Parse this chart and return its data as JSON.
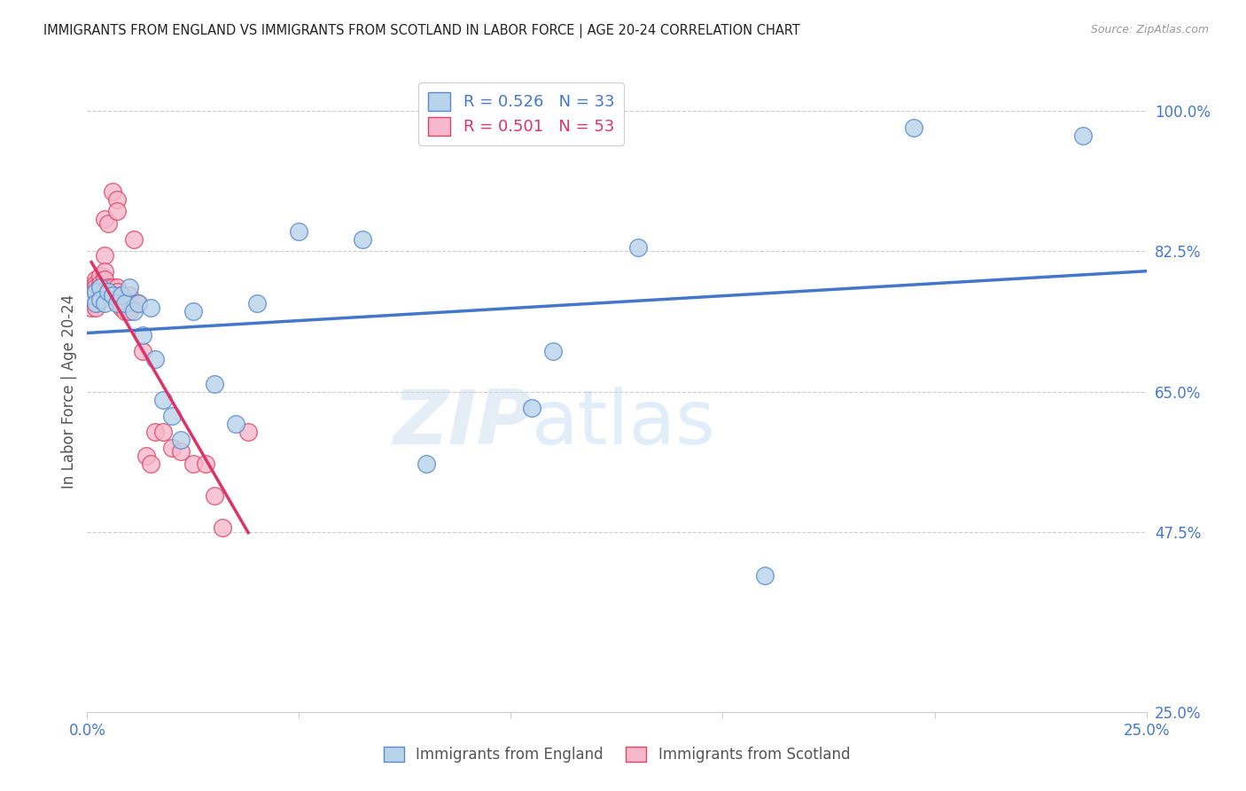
{
  "title": "IMMIGRANTS FROM ENGLAND VS IMMIGRANTS FROM SCOTLAND IN LABOR FORCE | AGE 20-24 CORRELATION CHART",
  "source": "Source: ZipAtlas.com",
  "ylabel": "In Labor Force | Age 20-24",
  "xlim": [
    0.0,
    0.25
  ],
  "ylim": [
    0.25,
    1.05
  ],
  "xticks": [
    0.0,
    0.05,
    0.1,
    0.15,
    0.2,
    0.25
  ],
  "yticks": [
    1.0,
    0.825,
    0.65,
    0.475,
    0.25
  ],
  "ytick_labels": [
    "100.0%",
    "82.5%",
    "65.0%",
    "47.5%",
    "25.0%"
  ],
  "xtick_labels": [
    "0.0%",
    "",
    "",
    "",
    "",
    "25.0%"
  ],
  "england_R": 0.526,
  "england_N": 33,
  "scotland_R": 0.501,
  "scotland_N": 53,
  "england_color": "#b8d4ea",
  "england_edge_color": "#5588cc",
  "scotland_color": "#f5b8cc",
  "scotland_edge_color": "#dd4466",
  "england_line_color": "#4477cc",
  "scotland_line_color": "#dd3366",
  "watermark_zip": "ZIP",
  "watermark_atlas": "atlas",
  "england_x": [
    0.001,
    0.002,
    0.002,
    0.003,
    0.003,
    0.004,
    0.005,
    0.006,
    0.007,
    0.008,
    0.009,
    0.01,
    0.011,
    0.012,
    0.013,
    0.015,
    0.016,
    0.018,
    0.02,
    0.022,
    0.025,
    0.03,
    0.035,
    0.04,
    0.05,
    0.065,
    0.08,
    0.105,
    0.11,
    0.13,
    0.16,
    0.195,
    0.235
  ],
  "england_y": [
    0.77,
    0.775,
    0.76,
    0.78,
    0.765,
    0.76,
    0.775,
    0.77,
    0.76,
    0.77,
    0.76,
    0.78,
    0.75,
    0.76,
    0.72,
    0.755,
    0.69,
    0.64,
    0.62,
    0.59,
    0.75,
    0.66,
    0.61,
    0.76,
    0.85,
    0.84,
    0.56,
    0.63,
    0.7,
    0.83,
    0.42,
    0.98,
    0.97
  ],
  "scotland_x": [
    0.001,
    0.001,
    0.001,
    0.001,
    0.001,
    0.002,
    0.002,
    0.002,
    0.002,
    0.002,
    0.002,
    0.002,
    0.002,
    0.003,
    0.003,
    0.003,
    0.003,
    0.003,
    0.004,
    0.004,
    0.004,
    0.004,
    0.005,
    0.005,
    0.005,
    0.006,
    0.006,
    0.007,
    0.007,
    0.007,
    0.007,
    0.008,
    0.008,
    0.008,
    0.009,
    0.009,
    0.01,
    0.01,
    0.01,
    0.011,
    0.012,
    0.013,
    0.014,
    0.015,
    0.016,
    0.018,
    0.02,
    0.022,
    0.025,
    0.028,
    0.03,
    0.032,
    0.038
  ],
  "scotland_y": [
    0.775,
    0.77,
    0.765,
    0.76,
    0.755,
    0.79,
    0.785,
    0.78,
    0.775,
    0.77,
    0.765,
    0.76,
    0.755,
    0.795,
    0.785,
    0.78,
    0.775,
    0.77,
    0.865,
    0.82,
    0.8,
    0.79,
    0.86,
    0.78,
    0.775,
    0.9,
    0.78,
    0.89,
    0.875,
    0.78,
    0.775,
    0.77,
    0.76,
    0.755,
    0.76,
    0.75,
    0.77,
    0.76,
    0.75,
    0.84,
    0.76,
    0.7,
    0.57,
    0.56,
    0.6,
    0.6,
    0.58,
    0.575,
    0.56,
    0.56,
    0.52,
    0.48,
    0.6
  ]
}
